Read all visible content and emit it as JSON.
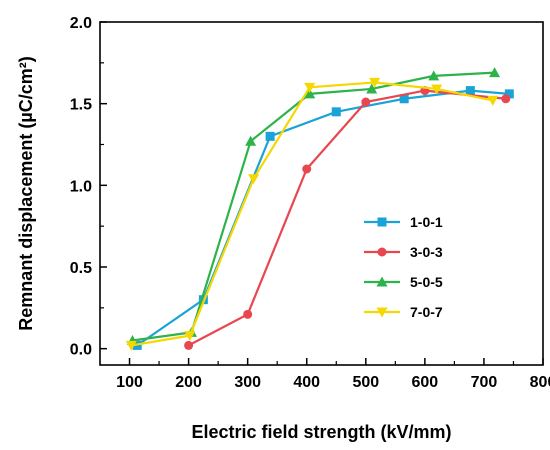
{
  "chart_data": {
    "type": "line",
    "xlabel": "Electric field strength (kV/mm)",
    "ylabel": "Remnant displacement (µC/cm²)",
    "xlim": [
      50,
      800
    ],
    "ylim": [
      -0.1,
      2.0
    ],
    "x_ticks": [
      "100",
      "200",
      "300",
      "400",
      "500",
      "600",
      "700",
      "800"
    ],
    "y_ticks": [
      "0.0",
      "0.5",
      "1.0",
      "1.5",
      "2.0"
    ],
    "legend_position": "center-right",
    "grid": false,
    "series": [
      {
        "name": "1-0-1",
        "color": "#1aa3d6",
        "marker": "square",
        "x": [
          113,
          225,
          338,
          450,
          565,
          677,
          743
        ],
        "y": [
          0.02,
          0.3,
          1.3,
          1.45,
          1.53,
          1.58,
          1.56
        ]
      },
      {
        "name": "3-0-3",
        "color": "#e8474f",
        "marker": "circle",
        "x": [
          200,
          300,
          400,
          500,
          600,
          737
        ],
        "y": [
          0.02,
          0.21,
          1.1,
          1.51,
          1.58,
          1.53
        ]
      },
      {
        "name": "5-0-5",
        "color": "#2eb34a",
        "marker": "triangle-up",
        "x": [
          105,
          205,
          305,
          405,
          510,
          615,
          718
        ],
        "y": [
          0.05,
          0.1,
          1.27,
          1.56,
          1.59,
          1.67,
          1.69
        ]
      },
      {
        "name": "7-0-7",
        "color": "#f5d800",
        "marker": "triangle-down",
        "x": [
          103,
          202,
          310,
          405,
          515,
          620,
          715
        ],
        "y": [
          0.02,
          0.08,
          1.04,
          1.6,
          1.63,
          1.59,
          1.52
        ]
      }
    ]
  }
}
